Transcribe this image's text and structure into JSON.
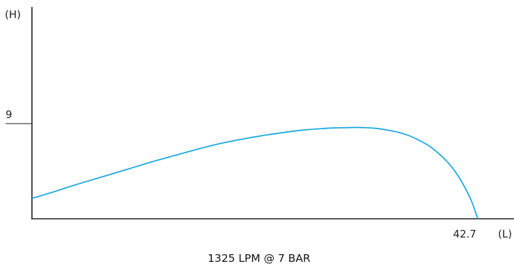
{
  "chart_data": {
    "type": "line",
    "caption": "1325 LPM @ 7 BAR",
    "x_axis_label": "(L)",
    "y_axis_label": "(H)",
    "x_tick_label": "42.7",
    "y_tick_label": "9",
    "xlim": [
      0,
      42.7
    ],
    "ylim": [
      0,
      13.3
    ],
    "grid": false,
    "series": [
      {
        "color": "#1ca8e0",
        "x": [
          0,
          2,
          4,
          6,
          8,
          10,
          12,
          14,
          16,
          18,
          20,
          22,
          24,
          26,
          28,
          29,
          30,
          31,
          32,
          33,
          34,
          35,
          36,
          37,
          38,
          39,
          40,
          41,
          42,
          42.7
        ],
        "y": [
          1.95,
          2.55,
          3.2,
          3.8,
          4.4,
          5.0,
          5.6,
          6.15,
          6.7,
          7.2,
          7.6,
          7.95,
          8.25,
          8.5,
          8.65,
          8.7,
          8.72,
          8.75,
          8.72,
          8.65,
          8.5,
          8.3,
          8.0,
          7.55,
          7.0,
          6.2,
          5.2,
          3.8,
          1.9,
          0
        ]
      }
    ]
  }
}
